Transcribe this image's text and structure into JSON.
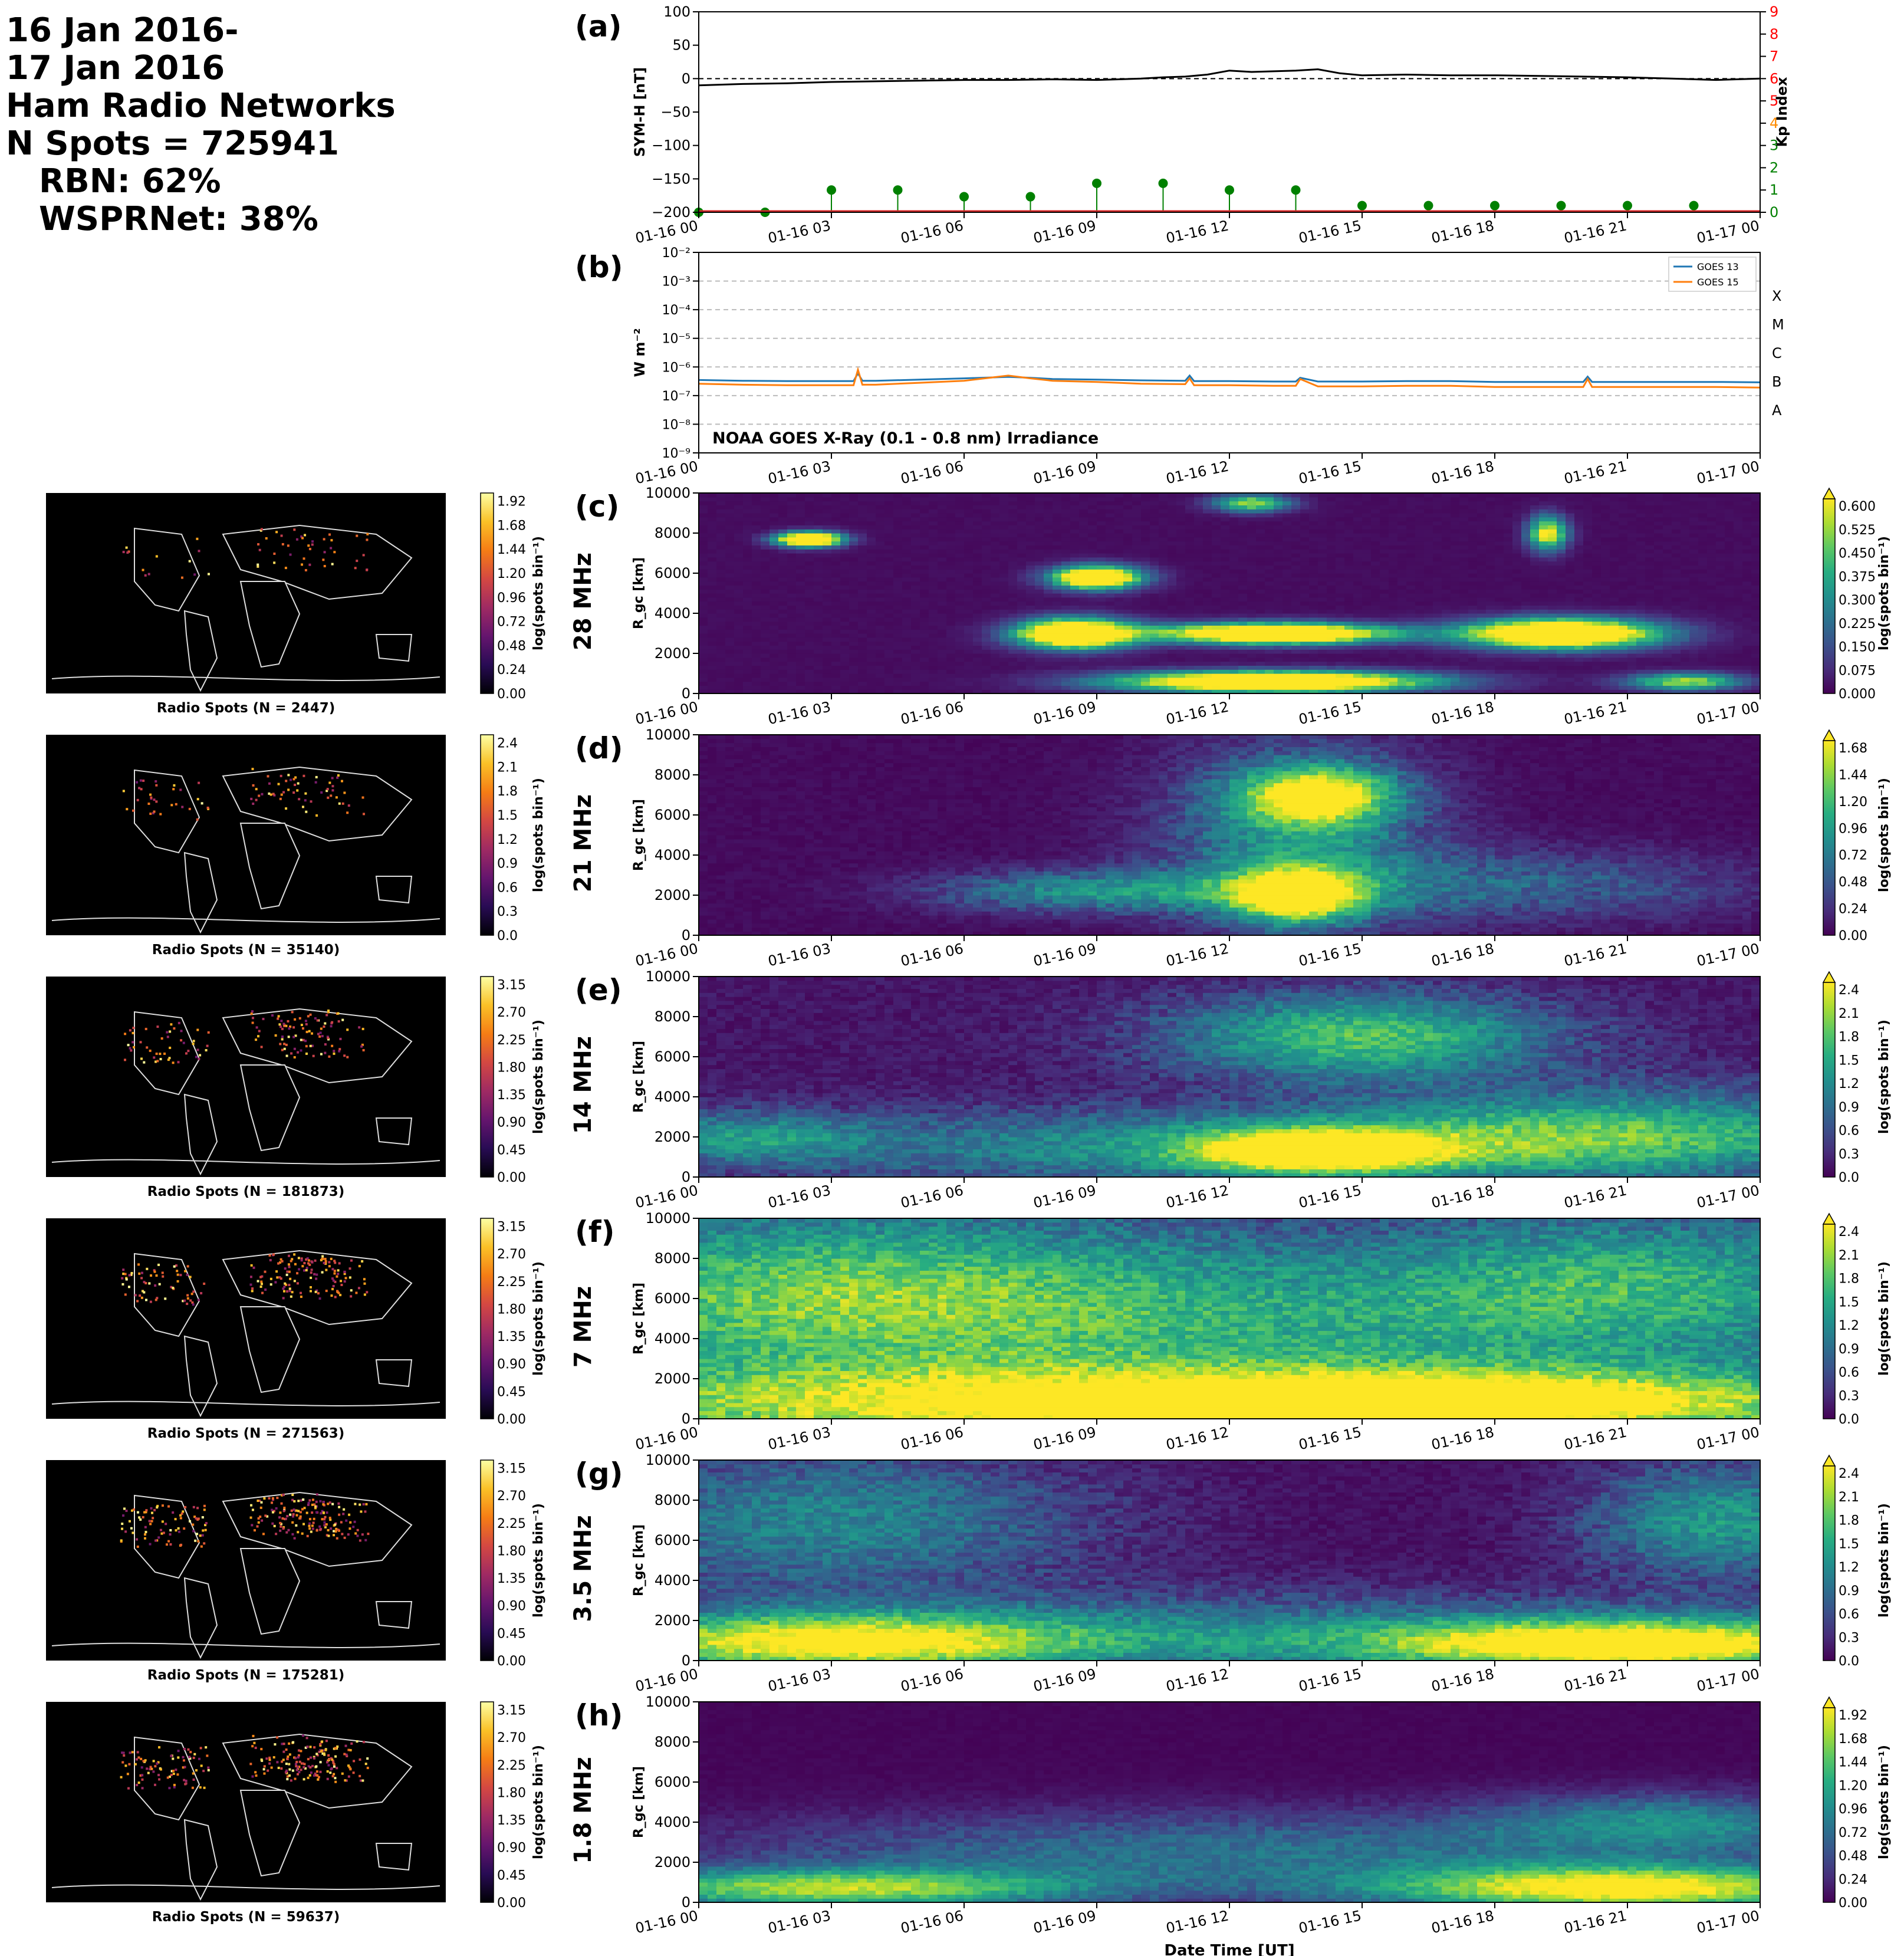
{
  "header": {
    "line1": "16 Jan 2016-",
    "line2": "17 Jan 2016",
    "line3": "Ham Radio Networks",
    "line4": "N Spots = 725941",
    "line5": "RBN: 62%",
    "line6": "WSPRNet: 38%"
  },
  "time_ticks": [
    "01-16 00",
    "01-16 03",
    "01-16 06",
    "01-16 09",
    "01-16 12",
    "01-16 15",
    "01-16 18",
    "01-16 21",
    "01-17 00"
  ],
  "xlabel": "Date Time [UT]",
  "chart_data": [
    {
      "id": "a",
      "label": "(a)",
      "type": "line",
      "ylabel": "SYM-H [nT]",
      "ylim": [
        -200,
        100
      ],
      "yticks": [
        "100",
        "50",
        "0",
        "−50",
        "−100",
        "−150",
        "−200"
      ],
      "ylabel_right": "Kp Index",
      "ylim_right": [
        0,
        9
      ],
      "yticks_right": [
        "0",
        "1",
        "2",
        "3",
        "4",
        "5",
        "6",
        "7",
        "8",
        "9"
      ],
      "yticks_right_colors": [
        "#008000",
        "#008000",
        "#008000",
        "#008000",
        "#ff8c00",
        "#ff0000",
        "#ff0000",
        "#ff0000",
        "#ff0000",
        "#ff0000"
      ],
      "symh": {
        "x_hours": [
          0,
          1,
          2,
          3,
          4,
          5,
          6,
          7,
          8,
          9,
          10,
          10.5,
          11,
          11.5,
          12,
          12.5,
          13,
          13.5,
          14,
          14.5,
          15,
          16,
          17,
          18,
          19,
          20,
          21,
          22,
          23,
          24
        ],
        "values": [
          -10,
          -8,
          -7,
          -5,
          -4,
          -3,
          -2,
          -2,
          -1,
          -2,
          0,
          2,
          3,
          6,
          12,
          10,
          11,
          12,
          14,
          8,
          5,
          6,
          5,
          5,
          4,
          3,
          2,
          0,
          -2,
          0
        ]
      },
      "kp": {
        "x_hours": [
          0,
          1.5,
          3,
          4.5,
          6,
          7.5,
          9,
          10.5,
          12,
          13.5,
          15,
          16.5,
          18,
          19.5,
          21,
          22.5
        ],
        "values": [
          0,
          0,
          1,
          1,
          0.7,
          0.7,
          1.3,
          1.3,
          1,
          1,
          0.3,
          0.3,
          0.3,
          0.3,
          0.3,
          0.3
        ],
        "color": "#008000"
      }
    },
    {
      "id": "b",
      "label": "(b)",
      "type": "line",
      "ylabel": "W m⁻²",
      "yscale": "log",
      "ylim": [
        1e-09,
        0.01
      ],
      "yticks": [
        "10⁻⁹",
        "10⁻⁸",
        "10⁻⁷",
        "10⁻⁶",
        "10⁻⁵",
        "10⁻⁴",
        "10⁻³",
        "10⁻²"
      ],
      "class_labels": [
        "A",
        "B",
        "C",
        "M",
        "X"
      ],
      "annotation": "NOAA GOES X-Ray (0.1 - 0.8 nm) Irradiance",
      "series": [
        {
          "name": "GOES 13",
          "color": "#1f77b4",
          "x_hours": [
            0,
            1,
            2,
            3,
            3.5,
            3.6,
            3.7,
            4,
            5,
            6,
            7,
            7.5,
            8,
            9,
            10,
            11,
            11.1,
            11.2,
            12,
            13,
            13.5,
            13.6,
            14,
            15,
            16,
            17,
            18,
            19,
            20,
            20.1,
            20.2,
            21,
            22,
            23,
            24
          ],
          "values": [
            3.5e-07,
            3.3e-07,
            3.2e-07,
            3.2e-07,
            3.2e-07,
            6e-07,
            3.3e-07,
            3.3e-07,
            3.6e-07,
            4e-07,
            4.5e-07,
            4.2e-07,
            3.8e-07,
            3.6e-07,
            3.4e-07,
            3.3e-07,
            5e-07,
            3.2e-07,
            3.2e-07,
            3.1e-07,
            3.1e-07,
            4.2e-07,
            3.1e-07,
            3.1e-07,
            3.2e-07,
            3.2e-07,
            3e-07,
            3e-07,
            3e-07,
            4.6e-07,
            3e-07,
            3e-07,
            3e-07,
            3e-07,
            2.9e-07
          ]
        },
        {
          "name": "GOES 15",
          "color": "#ff7f0e",
          "x_hours": [
            0,
            1,
            2,
            3,
            3.5,
            3.6,
            3.7,
            4,
            5,
            6,
            7,
            7.5,
            8,
            9,
            10,
            11,
            11.1,
            11.2,
            12,
            13,
            13.5,
            13.6,
            14,
            15,
            16,
            17,
            18,
            19,
            20,
            20.1,
            20.2,
            21,
            22,
            23,
            24
          ],
          "values": [
            2.6e-07,
            2.4e-07,
            2.3e-07,
            2.3e-07,
            2.3e-07,
            8e-07,
            2.4e-07,
            2.4e-07,
            2.8e-07,
            3.3e-07,
            5e-07,
            4e-07,
            3.3e-07,
            3e-07,
            2.6e-07,
            2.5e-07,
            4e-07,
            2.3e-07,
            2.3e-07,
            2.2e-07,
            2.2e-07,
            3.8e-07,
            2.1e-07,
            2.1e-07,
            2.2e-07,
            2.2e-07,
            2e-07,
            2e-07,
            2e-07,
            3.8e-07,
            2e-07,
            2e-07,
            2e-07,
            2e-07,
            1.9e-07
          ]
        }
      ]
    },
    {
      "id": "c",
      "label": "(c)",
      "type": "heatmap",
      "band": "28 MHz",
      "ylabel": "R_gc [km]",
      "ylim": [
        0,
        10000
      ],
      "yticks": [
        "0",
        "2000",
        "4000",
        "6000",
        "8000",
        "10000"
      ],
      "colorbar": {
        "label": "log(spots bin⁻¹)",
        "ticks": [
          "0.000",
          "0.075",
          "0.150",
          "0.225",
          "0.300",
          "0.375",
          "0.450",
          "0.525",
          "0.600"
        ],
        "vmax": 0.6
      },
      "map": {
        "caption": "Radio Spots (N = 2447)",
        "colorbar_ticks": [
          "0.00",
          "0.24",
          "0.48",
          "0.72",
          "0.96",
          "1.20",
          "1.44",
          "1.68",
          "1.92"
        ]
      },
      "hotspots": [
        {
          "t": 2.5,
          "r": 7700,
          "a": 1.0,
          "st": 0.5,
          "sr": 250
        },
        {
          "t": 8.5,
          "r": 3000,
          "a": 1.0,
          "st": 0.9,
          "sr": 500
        },
        {
          "t": 9.0,
          "r": 5800,
          "a": 0.9,
          "st": 0.7,
          "sr": 400
        },
        {
          "t": 13.0,
          "r": 3000,
          "a": 1.0,
          "st": 1.8,
          "sr": 350
        },
        {
          "t": 13.0,
          "r": 600,
          "a": 1.0,
          "st": 2.4,
          "sr": 350
        },
        {
          "t": 19.5,
          "r": 3000,
          "a": 1.0,
          "st": 1.5,
          "sr": 500
        },
        {
          "t": 19.2,
          "r": 8000,
          "a": 0.6,
          "st": 0.3,
          "sr": 600
        },
        {
          "t": 12.5,
          "r": 9500,
          "a": 0.5,
          "st": 0.6,
          "sr": 300
        },
        {
          "t": 22.3,
          "r": 600,
          "a": 0.5,
          "st": 0.9,
          "sr": 300
        }
      ],
      "background": 0.02,
      "noise": 0.05
    },
    {
      "id": "d",
      "label": "(d)",
      "type": "heatmap",
      "band": "21 MHz",
      "ylabel": "R_gc [km]",
      "ylim": [
        0,
        10000
      ],
      "yticks": [
        "0",
        "2000",
        "4000",
        "6000",
        "8000",
        "10000"
      ],
      "colorbar": {
        "label": "log(spots bin⁻¹)",
        "ticks": [
          "0.00",
          "0.24",
          "0.48",
          "0.72",
          "0.96",
          "1.20",
          "1.44",
          "1.68"
        ],
        "vmax": 1.7
      },
      "map": {
        "caption": "Radio Spots (N = 35140)",
        "colorbar_ticks": [
          "0.0",
          "0.3",
          "0.6",
          "0.9",
          "1.2",
          "1.5",
          "1.8",
          "2.1",
          "2.4"
        ]
      },
      "hotspots": [
        {
          "t": 13.5,
          "r": 2000,
          "a": 1.7,
          "st": 1.0,
          "sr": 900
        },
        {
          "t": 14.0,
          "r": 7000,
          "a": 1.5,
          "st": 1.2,
          "sr": 1000
        },
        {
          "t": 13.5,
          "r": 5000,
          "a": 0.8,
          "st": 2.0,
          "sr": 3000
        },
        {
          "t": 9.0,
          "r": 2200,
          "a": 0.8,
          "st": 2.5,
          "sr": 700
        },
        {
          "t": 18.0,
          "r": 2500,
          "a": 0.5,
          "st": 4.0,
          "sr": 1200
        }
      ],
      "background": 0.05,
      "noise": 0.18
    },
    {
      "id": "e",
      "label": "(e)",
      "type": "heatmap",
      "band": "14 MHz",
      "ylabel": "R_gc [km]",
      "ylim": [
        0,
        10000
      ],
      "yticks": [
        "0",
        "2000",
        "4000",
        "6000",
        "8000",
        "10000"
      ],
      "colorbar": {
        "label": "log(spots bin⁻¹)",
        "ticks": [
          "0.0",
          "0.3",
          "0.6",
          "0.9",
          "1.2",
          "1.5",
          "1.8",
          "2.1",
          "2.4"
        ],
        "vmax": 2.4
      },
      "map": {
        "caption": "Radio Spots (N = 181873)",
        "colorbar_ticks": [
          "0.00",
          "0.45",
          "0.90",
          "1.35",
          "1.80",
          "2.25",
          "2.70",
          "3.15"
        ]
      },
      "hotspots": [
        {
          "t": 14.0,
          "r": 1300,
          "a": 2.4,
          "st": 1.8,
          "sr": 700
        },
        {
          "t": 15.0,
          "r": 7000,
          "a": 1.6,
          "st": 3.0,
          "sr": 1500
        },
        {
          "t": 14.0,
          "r": 1500,
          "a": 1.3,
          "st": 8.0,
          "sr": 1300
        },
        {
          "t": 21.0,
          "r": 2500,
          "a": 1.0,
          "st": 4.0,
          "sr": 1500
        },
        {
          "t": 1.0,
          "r": 2000,
          "a": 0.9,
          "st": 2.0,
          "sr": 900
        }
      ],
      "background": 0.15,
      "noise": 0.25
    },
    {
      "id": "f",
      "label": "(f)",
      "type": "heatmap",
      "band": "7 MHz",
      "ylabel": "R_gc [km]",
      "ylim": [
        0,
        10000
      ],
      "yticks": [
        "0",
        "2000",
        "4000",
        "6000",
        "8000",
        "10000"
      ],
      "colorbar": {
        "label": "log(spots bin⁻¹)",
        "ticks": [
          "0.0",
          "0.3",
          "0.6",
          "0.9",
          "1.2",
          "1.5",
          "1.8",
          "2.1",
          "2.4"
        ],
        "vmax": 2.4
      },
      "map": {
        "caption": "Radio Spots (N = 271563)",
        "colorbar_ticks": [
          "0.00",
          "0.45",
          "0.90",
          "1.35",
          "1.80",
          "2.25",
          "2.70",
          "3.15"
        ]
      },
      "hotspots": [
        {
          "t": 12.0,
          "r": 600,
          "a": 2.2,
          "st": 12.0,
          "sr": 1400
        },
        {
          "t": 17.0,
          "r": 1000,
          "a": 1.0,
          "st": 4.0,
          "sr": 800
        },
        {
          "t": 3.0,
          "r": 6500,
          "a": 1.3,
          "st": 6.0,
          "sr": 3000
        },
        {
          "t": 21.0,
          "r": 7000,
          "a": 1.0,
          "st": 4.0,
          "sr": 2500
        },
        {
          "t": 12.0,
          "r": 4500,
          "a": 0.9,
          "st": 10.0,
          "sr": 3000
        }
      ],
      "background": 0.2,
      "noise": 0.3
    },
    {
      "id": "g",
      "label": "(g)",
      "type": "heatmap",
      "band": "3.5 MHz",
      "ylabel": "R_gc [km]",
      "ylim": [
        0,
        10000
      ],
      "yticks": [
        "0",
        "2000",
        "4000",
        "6000",
        "8000",
        "10000"
      ],
      "colorbar": {
        "label": "log(spots bin⁻¹)",
        "ticks": [
          "0.0",
          "0.3",
          "0.6",
          "0.9",
          "1.2",
          "1.5",
          "1.8",
          "2.1",
          "2.4"
        ],
        "vmax": 2.4
      },
      "map": {
        "caption": "Radio Spots (N = 175281)",
        "colorbar_ticks": [
          "0.00",
          "0.45",
          "0.90",
          "1.35",
          "1.80",
          "2.25",
          "2.70",
          "3.15"
        ]
      },
      "hotspots": [
        {
          "t": 21.0,
          "r": 800,
          "a": 2.4,
          "st": 4.0,
          "sr": 900
        },
        {
          "t": 3.0,
          "r": 900,
          "a": 2.0,
          "st": 4.0,
          "sr": 1000
        },
        {
          "t": 3.0,
          "r": 7000,
          "a": 1.0,
          "st": 4.0,
          "sr": 2500
        },
        {
          "t": 23.0,
          "r": 7000,
          "a": 1.2,
          "st": 2.0,
          "sr": 2000
        },
        {
          "t": 12.0,
          "r": 1200,
          "a": 0.9,
          "st": 10.0,
          "sr": 1500
        }
      ],
      "background": 0.1,
      "noise": 0.25
    },
    {
      "id": "h",
      "label": "(h)",
      "type": "heatmap",
      "band": "1.8 MHz",
      "ylabel": "R_gc [km]",
      "ylim": [
        0,
        10000
      ],
      "yticks": [
        "0",
        "2000",
        "4000",
        "6000",
        "8000",
        "10000"
      ],
      "colorbar": {
        "label": "log(spots bin⁻¹)",
        "ticks": [
          "0.00",
          "0.24",
          "0.48",
          "0.72",
          "0.96",
          "1.20",
          "1.44",
          "1.68",
          "1.92"
        ],
        "vmax": 1.95
      },
      "map": {
        "caption": "Radio Spots (N = 59637)",
        "colorbar_ticks": [
          "0.00",
          "0.45",
          "0.90",
          "1.35",
          "1.80",
          "2.25",
          "2.70",
          "3.15"
        ]
      },
      "hotspots": [
        {
          "t": 21.0,
          "r": 700,
          "a": 2.0,
          "st": 4.0,
          "sr": 800
        },
        {
          "t": 3.0,
          "r": 700,
          "a": 1.6,
          "st": 4.0,
          "sr": 700
        },
        {
          "t": 12.0,
          "r": 2500,
          "a": 0.7,
          "st": 8.0,
          "sr": 1400
        },
        {
          "t": 22.0,
          "r": 4000,
          "a": 0.8,
          "st": 3.0,
          "sr": 1000
        }
      ],
      "background": 0.03,
      "noise": 0.15
    }
  ]
}
